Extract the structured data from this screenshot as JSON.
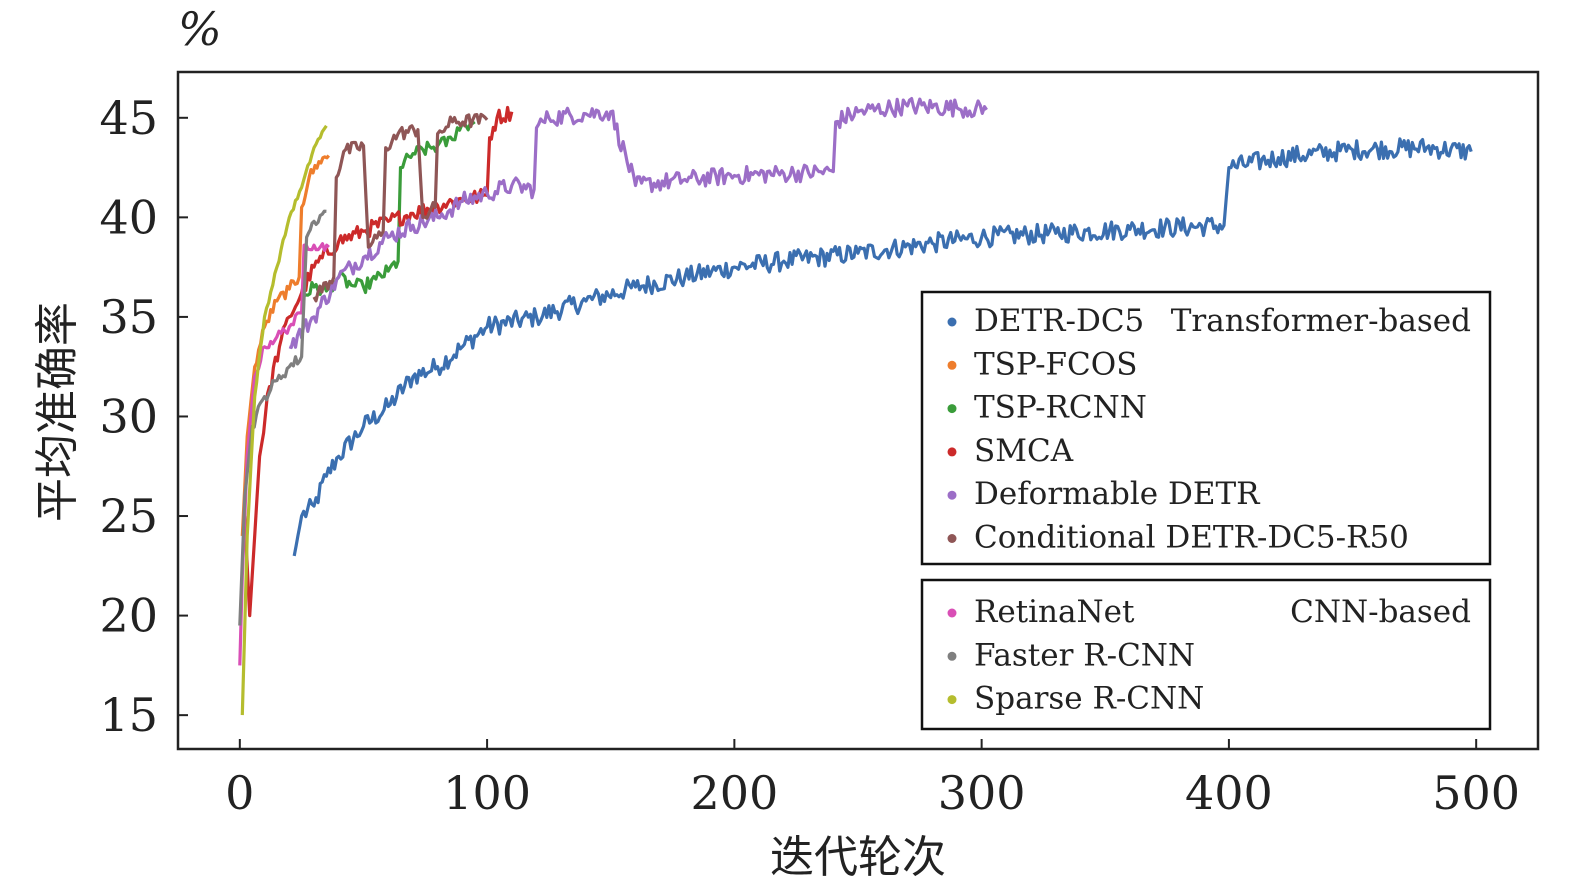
{
  "chart_data": {
    "type": "line",
    "xlabel": "迭代轮次",
    "ylabel": "平均准确率",
    "y_unit": "%",
    "xlim": [
      -25,
      525
    ],
    "ylim": [
      13.3,
      47.3
    ],
    "xticks": [
      0,
      100,
      200,
      300,
      400,
      500
    ],
    "yticks": [
      15,
      20,
      25,
      30,
      35,
      40,
      45
    ],
    "grid": false,
    "legend_groups": [
      {
        "title": "Transformer-based",
        "series": [
          "DETR-DC5",
          "TSP-FCOS",
          "TSP-RCNN",
          "SMCA",
          "Deformable DETR",
          "Conditional DETR-DC5-R50"
        ]
      },
      {
        "title": "CNN-based",
        "series": [
          "RetinaNet",
          "Faster R-CNN",
          "Sparse R-CNN"
        ]
      }
    ],
    "series": [
      {
        "name": "DETR-DC5",
        "color": "#3b6fb0",
        "noise": 0.5,
        "points": [
          [
            22,
            23.0
          ],
          [
            25,
            25.0
          ],
          [
            30,
            25.5
          ],
          [
            35,
            27
          ],
          [
            40,
            28
          ],
          [
            50,
            29.5
          ],
          [
            60,
            30.5
          ],
          [
            70,
            32
          ],
          [
            80,
            32.5
          ],
          [
            90,
            33.5
          ],
          [
            100,
            34.5
          ],
          [
            120,
            35
          ],
          [
            140,
            35.8
          ],
          [
            160,
            36.5
          ],
          [
            180,
            37.0
          ],
          [
            200,
            37.5
          ],
          [
            220,
            37.8
          ],
          [
            250,
            38.2
          ],
          [
            280,
            38.7
          ],
          [
            300,
            39.0
          ],
          [
            330,
            39.2
          ],
          [
            360,
            39.4
          ],
          [
            398,
            39.6
          ],
          [
            400,
            42.5
          ],
          [
            420,
            43.0
          ],
          [
            450,
            43.4
          ],
          [
            480,
            43.5
          ],
          [
            498,
            43.3
          ]
        ]
      },
      {
        "name": "TSP-FCOS",
        "color": "#ee7d2c",
        "noise": 0.3,
        "points": [
          [
            1,
            24
          ],
          [
            3,
            29
          ],
          [
            6,
            32.5
          ],
          [
            10,
            34.5
          ],
          [
            15,
            35.8
          ],
          [
            20,
            36.4
          ],
          [
            24,
            37.0
          ],
          [
            25,
            40.5
          ],
          [
            28,
            42.0
          ],
          [
            32,
            42.8
          ],
          [
            36,
            43.1
          ]
        ]
      },
      {
        "name": "TSP-RCNN",
        "color": "#3a9c3a",
        "noise": 0.35,
        "points": [
          [
            25,
            36.0
          ],
          [
            30,
            36.5
          ],
          [
            35,
            36.3
          ],
          [
            40,
            37.0
          ],
          [
            45,
            36.6
          ],
          [
            50,
            36.5
          ],
          [
            55,
            36.9
          ],
          [
            60,
            37.3
          ],
          [
            64,
            37.8
          ],
          [
            65,
            42.5
          ],
          [
            70,
            43.2
          ],
          [
            80,
            43.6
          ],
          [
            86,
            43.9
          ],
          [
            88,
            44.5
          ],
          [
            95,
            44.8
          ]
        ]
      },
      {
        "name": "SMCA",
        "color": "#cc2a2a",
        "noise": 0.4,
        "points": [
          [
            2,
            25
          ],
          [
            4,
            20.0
          ],
          [
            6,
            24
          ],
          [
            8,
            28
          ],
          [
            12,
            31.5
          ],
          [
            16,
            33.5
          ],
          [
            20,
            35
          ],
          [
            25,
            36.2
          ],
          [
            30,
            37.5
          ],
          [
            40,
            38.8
          ],
          [
            50,
            39.3
          ],
          [
            60,
            39.8
          ],
          [
            70,
            40.2
          ],
          [
            80,
            40.6
          ],
          [
            90,
            40.9
          ],
          [
            100,
            41.1
          ],
          [
            101,
            44.0
          ],
          [
            104,
            45.0
          ],
          [
            110,
            45.3
          ]
        ]
      },
      {
        "name": "Deformable DETR",
        "color": "#9c6ec7",
        "noise": 0.45,
        "points": [
          [
            20,
            33.5
          ],
          [
            30,
            35.0
          ],
          [
            40,
            37.0
          ],
          [
            50,
            38.0
          ],
          [
            60,
            39.0
          ],
          [
            70,
            39.6
          ],
          [
            80,
            40.0
          ],
          [
            90,
            40.8
          ],
          [
            100,
            41.2
          ],
          [
            110,
            41.6
          ],
          [
            119,
            41.4
          ],
          [
            120,
            44.5
          ],
          [
            125,
            45.0
          ],
          [
            140,
            45.2
          ],
          [
            150,
            45.3
          ],
          [
            160,
            41.6
          ],
          [
            180,
            41.9
          ],
          [
            200,
            42.1
          ],
          [
            220,
            42.2
          ],
          [
            240,
            42.3
          ],
          [
            241,
            44.8
          ],
          [
            250,
            45.3
          ],
          [
            270,
            45.6
          ],
          [
            290,
            45.5
          ],
          [
            302,
            45.4
          ]
        ]
      },
      {
        "name": "Conditional DETR-DC5-R50",
        "color": "#8f5656",
        "noise": 0.35,
        "points": [
          [
            30,
            36.0
          ],
          [
            38,
            37.0
          ],
          [
            39,
            42.0
          ],
          [
            42,
            43.3
          ],
          [
            50,
            43.6
          ],
          [
            52,
            38.5
          ],
          [
            58,
            39.3
          ],
          [
            59,
            43.5
          ],
          [
            64,
            44.2
          ],
          [
            72,
            44.4
          ],
          [
            74,
            40.0
          ],
          [
            79,
            40.5
          ],
          [
            80,
            44.2
          ],
          [
            86,
            44.8
          ],
          [
            100,
            44.9
          ]
        ]
      },
      {
        "name": "RetinaNet",
        "color": "#d94fb6",
        "noise": 0.25,
        "points": [
          [
            0,
            17.5
          ],
          [
            1,
            22
          ],
          [
            3,
            28
          ],
          [
            6,
            32
          ],
          [
            10,
            33.5
          ],
          [
            15,
            34.0
          ],
          [
            20,
            34.5
          ],
          [
            25,
            35.2
          ],
          [
            26,
            38.6
          ],
          [
            30,
            38.6
          ],
          [
            36,
            38.5
          ]
        ]
      },
      {
        "name": "Faster R-CNN",
        "color": "#7f7f7f",
        "noise": 0.3,
        "points": [
          [
            0,
            19.5
          ],
          [
            2,
            26
          ],
          [
            5,
            29.5
          ],
          [
            10,
            31.0
          ],
          [
            15,
            31.8
          ],
          [
            20,
            32.5
          ],
          [
            25,
            33.0
          ],
          [
            27,
            39.0
          ],
          [
            30,
            39.8
          ],
          [
            35,
            40.3
          ]
        ]
      },
      {
        "name": "Sparse R-CNN",
        "color": "#b5bd2e",
        "noise": 0.12,
        "points": [
          [
            1,
            15.0
          ],
          [
            3,
            24
          ],
          [
            6,
            31
          ],
          [
            10,
            35
          ],
          [
            15,
            37.5
          ],
          [
            20,
            40.0
          ],
          [
            25,
            41.5
          ],
          [
            30,
            43.5
          ],
          [
            35,
            44.6
          ]
        ]
      }
    ]
  }
}
